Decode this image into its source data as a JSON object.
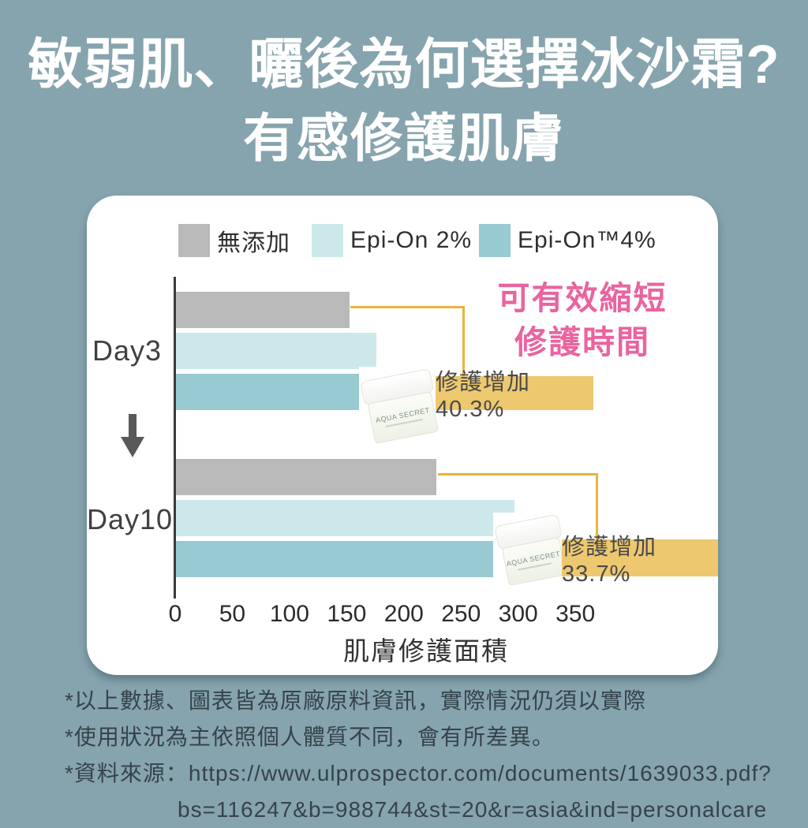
{
  "page": {
    "background_color": "#86a4ae",
    "card_color": "#ffffff"
  },
  "title": {
    "line1": "敏弱肌、曬後為何選擇冰沙霜?",
    "line2": "有感修護肌膚"
  },
  "chart_data": {
    "type": "bar",
    "orientation": "horizontal",
    "categories": [
      "Day3",
      "Day10"
    ],
    "series": [
      {
        "name": "無添加",
        "color": "#b9b9b9",
        "values": [
          152,
          228
        ]
      },
      {
        "name": "Epi-On 2%",
        "color": "#cde8ea",
        "values": [
          175,
          296
        ]
      },
      {
        "name": "Epi-On™4%",
        "color": "#98cad2",
        "values": [
          213,
          305
        ]
      }
    ],
    "xlabel": "肌膚修護面積",
    "xticks": [
      0,
      50,
      100,
      150,
      200,
      250,
      300,
      350
    ],
    "xlim": [
      0,
      350
    ],
    "grid": false,
    "legend_position": "top",
    "annotations": [
      {
        "type": "headline",
        "lines": [
          "可有效縮短",
          "修護時間"
        ],
        "color": "#e9649f"
      },
      {
        "type": "callout",
        "group": "Day3",
        "text": "修護增加40.3%",
        "box_color": "#edc86f"
      },
      {
        "type": "callout",
        "group": "Day10",
        "text": "修護增加33.7%",
        "box_color": "#edc86f"
      }
    ]
  },
  "product": {
    "jar_label": "AQUA SECRET"
  },
  "footnotes": {
    "line1": "*以上數據、圖表皆為原廠原料資訊，實際情況仍須以實際",
    "line2": "*使用狀況為主依照個人體質不同，會有所差異。",
    "line3": "*資料來源：https://www.ulprospector.com/documents/1639033.pdf?",
    "line4": "bs=116247&b=988744&st=20&r=asia&ind=personalcare"
  }
}
